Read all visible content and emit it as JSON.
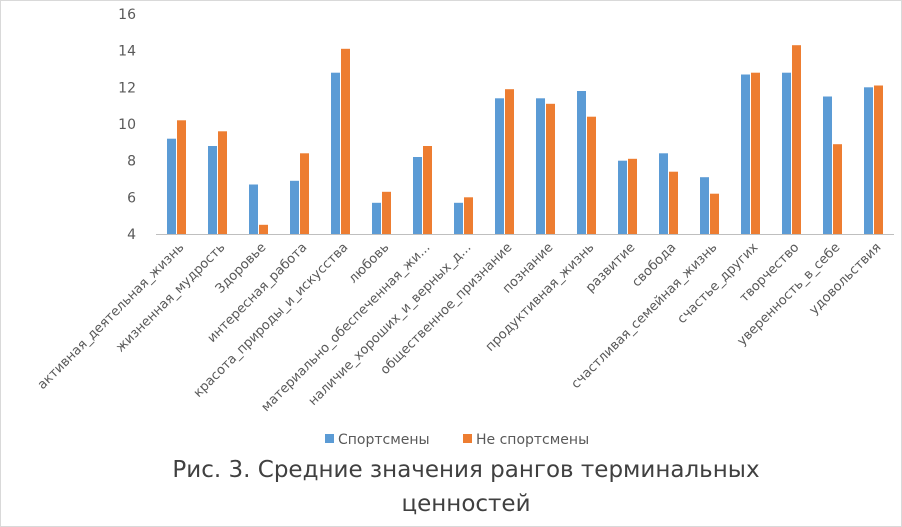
{
  "chart_data": {
    "type": "bar",
    "title": "",
    "xlabel": "",
    "ylabel": "",
    "ylim": [
      4,
      16
    ],
    "yticks": [
      4,
      6,
      8,
      10,
      12,
      14,
      16
    ],
    "grid": false,
    "legend_position": "bottom",
    "categories": [
      "активная_деятельная_жизнь",
      "жизненная_мудрость",
      "Здоровье",
      "интересная_работа",
      "красота_природы_и_искусства",
      "любовь",
      "материально_обеспеченная_жи...",
      "наличие_хороших_и_верных_д...",
      "общественное_признание",
      "познание",
      "продуктивная_жизнь",
      "развитие",
      "свобода",
      "счастливая_семейная_жизнь",
      "счастье_других",
      "творчество",
      "уверенность_в_себе",
      "удовольствия"
    ],
    "series": [
      {
        "name": "Спортсмены",
        "color": "#5b9bd5",
        "values": [
          9.2,
          8.8,
          6.7,
          6.9,
          12.8,
          5.7,
          8.2,
          5.7,
          11.4,
          11.4,
          11.8,
          8.0,
          8.4,
          7.1,
          12.7,
          12.8,
          11.5,
          12.0
        ]
      },
      {
        "name": "Не спортсмены",
        "color": "#ed7d31",
        "values": [
          10.2,
          9.6,
          4.5,
          8.4,
          14.1,
          6.3,
          8.8,
          6.0,
          11.9,
          11.1,
          10.4,
          8.1,
          7.4,
          6.2,
          12.8,
          14.3,
          8.9,
          12.1
        ]
      }
    ]
  },
  "caption": {
    "line1": "Рис. 3. Средние значения рангов терминальных",
    "line2": "ценностей"
  },
  "colors": {
    "axis": "#bfbfbf",
    "text": "#595959"
  }
}
